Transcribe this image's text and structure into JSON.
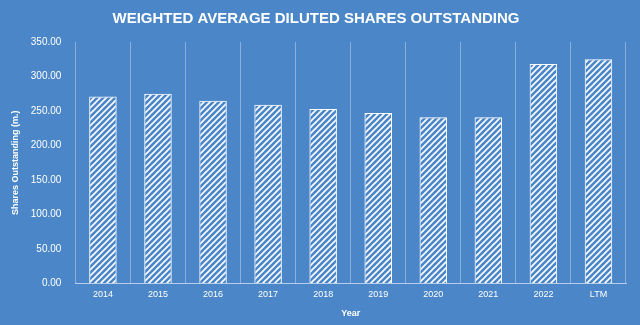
{
  "chart_data": {
    "type": "bar",
    "title": "WEIGHTED AVERAGE DILUTED SHARES OUTSTANDING",
    "x_label": "Year",
    "y_label": "Shares Outstanding (m.)",
    "categories": [
      "2014",
      "2015",
      "2016",
      "2017",
      "2018",
      "2019",
      "2020",
      "2021",
      "2022",
      "LTM"
    ],
    "values": [
      271,
      275,
      265,
      259,
      253,
      247,
      241,
      241,
      318,
      325
    ],
    "color": "#ffffff",
    "ylim": [
      0,
      350
    ],
    "yticks": [
      {
        "value": 0,
        "label": "0.00"
      },
      {
        "value": 50,
        "label": "50.00"
      },
      {
        "value": 100,
        "label": "100.00"
      },
      {
        "value": 150,
        "label": "150.00"
      },
      {
        "value": 200,
        "label": "200.00"
      },
      {
        "value": 250,
        "label": "250.00"
      },
      {
        "value": 300,
        "label": "300.00"
      },
      {
        "value": 350,
        "label": "350.00"
      }
    ],
    "grid": true
  }
}
